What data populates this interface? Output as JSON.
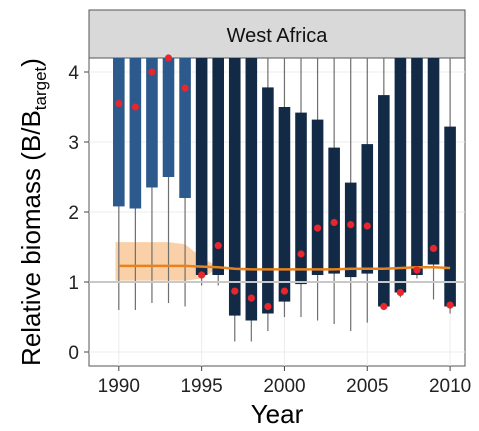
{
  "chart_data": {
    "type": "box",
    "panel_title": "West Africa",
    "xlabel": "Year",
    "ylabel_main": "Relative biomass (B/B",
    "ylabel_sub": "target",
    "ylabel_close": ")",
    "xlim": [
      1988.2,
      2010.9
    ],
    "ylim": [
      -0.2,
      4.2
    ],
    "xticks": [
      1990,
      1995,
      2000,
      2005,
      2010
    ],
    "yticks": [
      0,
      1,
      2,
      3,
      4
    ],
    "reference_line": 1,
    "colors": {
      "early_box": "#2c5a8c",
      "late_box": "#132a47",
      "whisker": "#6f6f6f",
      "point": "#e8262b",
      "trend": "#e8821e",
      "band": "#f7c08a",
      "reference": "#c8c8c8",
      "grid": "#ececec",
      "strip_bg": "#d9d9d9"
    },
    "series": [
      {
        "year": 1990,
        "whisker_low": 0.6,
        "q1": 2.08,
        "q3": 4.2,
        "whisker_high": 4.2,
        "point": 3.55
      },
      {
        "year": 1991,
        "whisker_low": 0.6,
        "q1": 2.05,
        "q3": 4.2,
        "whisker_high": 4.2,
        "point": 3.5
      },
      {
        "year": 1992,
        "whisker_low": 0.7,
        "q1": 2.35,
        "q3": 4.2,
        "whisker_high": 4.2,
        "point": 4.0
      },
      {
        "year": 1993,
        "whisker_low": 0.7,
        "q1": 2.5,
        "q3": 4.2,
        "whisker_high": 4.2,
        "point": 4.2
      },
      {
        "year": 1994,
        "whisker_low": 0.65,
        "q1": 2.2,
        "q3": 4.2,
        "whisker_high": 4.2,
        "point": 3.77
      },
      {
        "year": 1995,
        "whisker_low": 0.95,
        "q1": 1.1,
        "q3": 4.2,
        "whisker_high": 4.2,
        "point": 1.1
      },
      {
        "year": 1996,
        "whisker_low": 0.95,
        "q1": 1.1,
        "q3": 4.2,
        "whisker_high": 4.2,
        "point": 1.52
      },
      {
        "year": 1997,
        "whisker_low": 0.15,
        "q1": 0.52,
        "q3": 4.2,
        "whisker_high": 4.2,
        "point": 0.87
      },
      {
        "year": 1998,
        "whisker_low": 0.15,
        "q1": 0.45,
        "q3": 4.2,
        "whisker_high": 4.2,
        "point": 0.77
      },
      {
        "year": 1999,
        "whisker_low": 0.3,
        "q1": 0.55,
        "q3": 3.78,
        "whisker_high": 4.2,
        "point": 0.65
      },
      {
        "year": 2000,
        "whisker_low": 0.5,
        "q1": 0.72,
        "q3": 3.5,
        "whisker_high": 4.2,
        "point": 0.87
      },
      {
        "year": 2001,
        "whisker_low": 0.5,
        "q1": 0.97,
        "q3": 3.42,
        "whisker_high": 4.2,
        "point": 1.4
      },
      {
        "year": 2002,
        "whisker_low": 0.45,
        "q1": 1.1,
        "q3": 3.32,
        "whisker_high": 4.2,
        "point": 1.77
      },
      {
        "year": 2003,
        "whisker_low": 0.4,
        "q1": 1.12,
        "q3": 2.92,
        "whisker_high": 4.2,
        "point": 1.85
      },
      {
        "year": 2004,
        "whisker_low": 0.3,
        "q1": 1.07,
        "q3": 2.42,
        "whisker_high": 4.2,
        "point": 1.82
      },
      {
        "year": 2005,
        "whisker_low": 0.42,
        "q1": 1.12,
        "q3": 2.97,
        "whisker_high": 4.2,
        "point": 1.8
      },
      {
        "year": 2006,
        "whisker_low": 0.62,
        "q1": 0.65,
        "q3": 3.67,
        "whisker_high": 4.2,
        "point": 0.65
      },
      {
        "year": 2007,
        "whisker_low": 0.78,
        "q1": 0.85,
        "q3": 4.2,
        "whisker_high": 4.2,
        "point": 0.85
      },
      {
        "year": 2008,
        "whisker_low": 1.05,
        "q1": 1.1,
        "q3": 4.2,
        "whisker_high": 4.2,
        "point": 1.17
      },
      {
        "year": 2009,
        "whisker_low": 0.75,
        "q1": 1.25,
        "q3": 4.2,
        "whisker_high": 4.2,
        "point": 1.48
      },
      {
        "year": 2010,
        "whisker_low": 0.55,
        "q1": 0.65,
        "q3": 3.22,
        "whisker_high": 4.2,
        "point": 0.67
      }
    ],
    "trend": {
      "x": [
        1990,
        1991,
        1992,
        1993,
        1994,
        1995,
        1996,
        1997,
        1998,
        1999,
        2000,
        2001,
        2002,
        2003,
        2004,
        2005,
        2006,
        2007,
        2008,
        2009,
        2010
      ],
      "y": [
        1.23,
        1.23,
        1.23,
        1.23,
        1.23,
        1.22,
        1.21,
        1.19,
        1.18,
        1.18,
        1.18,
        1.18,
        1.18,
        1.18,
        1.19,
        1.19,
        1.19,
        1.2,
        1.21,
        1.21,
        1.2
      ]
    },
    "band": {
      "x": [
        1990,
        1991,
        1992,
        1993,
        1994,
        1995,
        1996
      ],
      "low": [
        1.02,
        1.02,
        1.02,
        1.02,
        1.02,
        1.05,
        1.2
      ],
      "high": [
        1.57,
        1.57,
        1.57,
        1.57,
        1.54,
        1.35,
        1.22
      ]
    }
  }
}
